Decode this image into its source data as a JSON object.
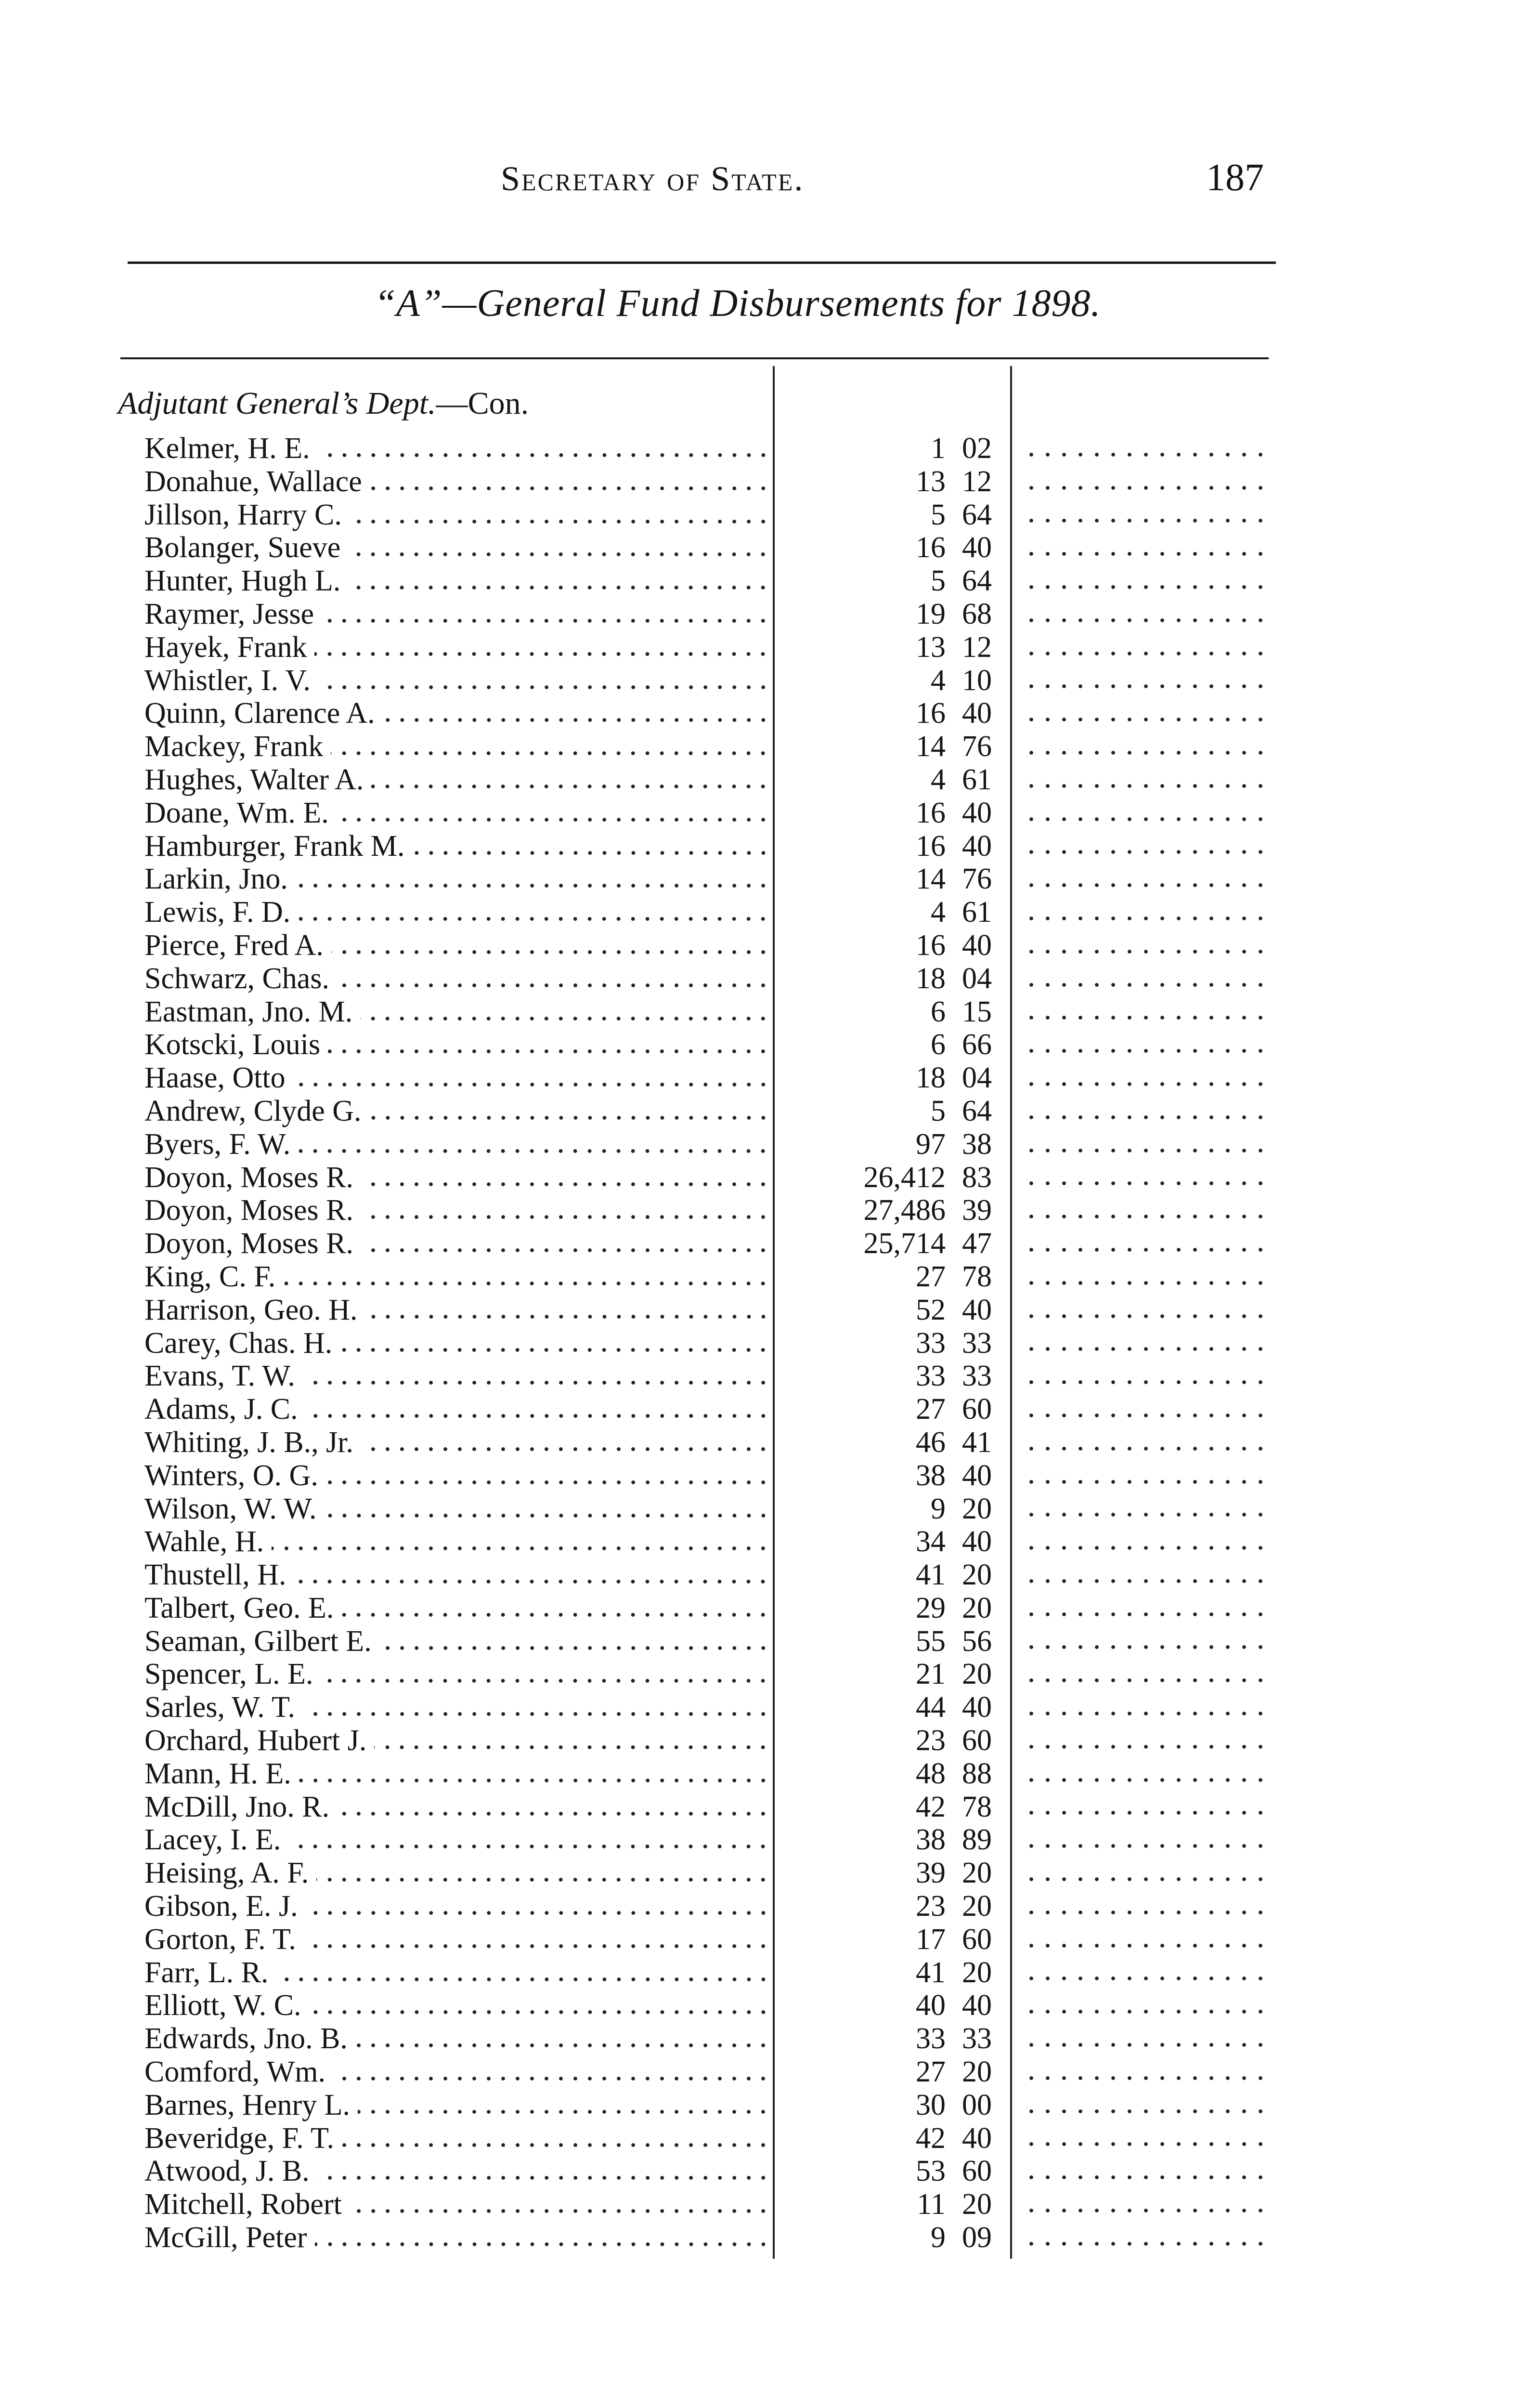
{
  "header": {
    "running_title": "Secretary of State.",
    "page_number": "187"
  },
  "table_title": "“A”—General Fund Disbursements for 1898.",
  "section": {
    "department": "Adjutant General’s Dept.",
    "continued": "—Con."
  },
  "rows": [
    {
      "name": "Kelmer, H. E.",
      "dollars": "1",
      "cents": "02"
    },
    {
      "name": "Donahue, Wallace",
      "dollars": "13",
      "cents": "12"
    },
    {
      "name": "Jillson, Harry C.",
      "dollars": "5",
      "cents": "64"
    },
    {
      "name": "Bolanger, Sueve",
      "dollars": "16",
      "cents": "40"
    },
    {
      "name": "Hunter, Hugh L.",
      "dollars": "5",
      "cents": "64"
    },
    {
      "name": "Raymer, Jesse",
      "dollars": "19",
      "cents": "68"
    },
    {
      "name": "Hayek, Frank",
      "dollars": "13",
      "cents": "12"
    },
    {
      "name": "Whistler, I. V.",
      "dollars": "4",
      "cents": "10"
    },
    {
      "name": "Quinn, Clarence A.",
      "dollars": "16",
      "cents": "40"
    },
    {
      "name": "Mackey, Frank",
      "dollars": "14",
      "cents": "76"
    },
    {
      "name": "Hughes, Walter A.",
      "dollars": "4",
      "cents": "61"
    },
    {
      "name": "Doane, Wm. E.",
      "dollars": "16",
      "cents": "40"
    },
    {
      "name": "Hamburger, Frank M.",
      "dollars": "16",
      "cents": "40"
    },
    {
      "name": "Larkin, Jno.",
      "dollars": "14",
      "cents": "76"
    },
    {
      "name": "Lewis, F. D.",
      "dollars": "4",
      "cents": "61"
    },
    {
      "name": "Pierce, Fred A.",
      "dollars": "16",
      "cents": "40"
    },
    {
      "name": "Schwarz, Chas.",
      "dollars": "18",
      "cents": "04"
    },
    {
      "name": "Eastman, Jno. M.",
      "dollars": "6",
      "cents": "15"
    },
    {
      "name": "Kotscki, Louis",
      "dollars": "6",
      "cents": "66"
    },
    {
      "name": "Haase, Otto",
      "dollars": "18",
      "cents": "04"
    },
    {
      "name": "Andrew, Clyde G.",
      "dollars": "5",
      "cents": "64"
    },
    {
      "name": "Byers, F. W.",
      "dollars": "97",
      "cents": "38"
    },
    {
      "name": "Doyon, Moses R.",
      "dollars": "26,412",
      "cents": "83"
    },
    {
      "name": "Doyon, Moses R.",
      "dollars": "27,486",
      "cents": "39"
    },
    {
      "name": "Doyon, Moses R.",
      "dollars": "25,714",
      "cents": "47"
    },
    {
      "name": "King, C. F.",
      "dollars": "27",
      "cents": "78"
    },
    {
      "name": "Harrison, Geo. H.",
      "dollars": "52",
      "cents": "40"
    },
    {
      "name": "Carey, Chas. H.",
      "dollars": "33",
      "cents": "33"
    },
    {
      "name": "Evans, T. W.",
      "dollars": "33",
      "cents": "33"
    },
    {
      "name": "Adams, J. C.",
      "dollars": "27",
      "cents": "60"
    },
    {
      "name": "Whiting, J. B., Jr.",
      "dollars": "46",
      "cents": "41"
    },
    {
      "name": "Winters, O. G.",
      "dollars": "38",
      "cents": "40"
    },
    {
      "name": "Wilson, W. W.",
      "dollars": "9",
      "cents": "20"
    },
    {
      "name": "Wahle, H.",
      "dollars": "34",
      "cents": "40"
    },
    {
      "name": "Thustell, H.",
      "dollars": "41",
      "cents": "20"
    },
    {
      "name": "Talbert, Geo. E.",
      "dollars": "29",
      "cents": "20"
    },
    {
      "name": "Seaman, Gilbert E.",
      "dollars": "55",
      "cents": "56"
    },
    {
      "name": "Spencer, L. E.",
      "dollars": "21",
      "cents": "20"
    },
    {
      "name": "Sarles, W. T.",
      "dollars": "44",
      "cents": "40"
    },
    {
      "name": "Orchard, Hubert J.",
      "dollars": "23",
      "cents": "60"
    },
    {
      "name": "Mann, H. E.",
      "dollars": "48",
      "cents": "88"
    },
    {
      "name": "McDill, Jno. R.",
      "dollars": "42",
      "cents": "78"
    },
    {
      "name": "Lacey, I. E.",
      "dollars": "38",
      "cents": "89"
    },
    {
      "name": "Heising, A. F.",
      "dollars": "39",
      "cents": "20"
    },
    {
      "name": "Gibson, E. J.",
      "dollars": "23",
      "cents": "20"
    },
    {
      "name": "Gorton, F. T.",
      "dollars": "17",
      "cents": "60"
    },
    {
      "name": "Farr, L. R.",
      "dollars": "41",
      "cents": "20"
    },
    {
      "name": "Elliott, W. C.",
      "dollars": "40",
      "cents": "40"
    },
    {
      "name": "Edwards, Jno. B.",
      "dollars": "33",
      "cents": "33"
    },
    {
      "name": "Comford, Wm.",
      "dollars": "27",
      "cents": "20"
    },
    {
      "name": "Barnes, Henry L.",
      "dollars": "30",
      "cents": "00"
    },
    {
      "name": "Beveridge, F. T.",
      "dollars": "42",
      "cents": "40"
    },
    {
      "name": "Atwood, J. B.",
      "dollars": "53",
      "cents": "60"
    },
    {
      "name": "Mitchell, Robert",
      "dollars": "11",
      "cents": "20"
    },
    {
      "name": "McGill, Peter",
      "dollars": "9",
      "cents": "09"
    }
  ]
}
